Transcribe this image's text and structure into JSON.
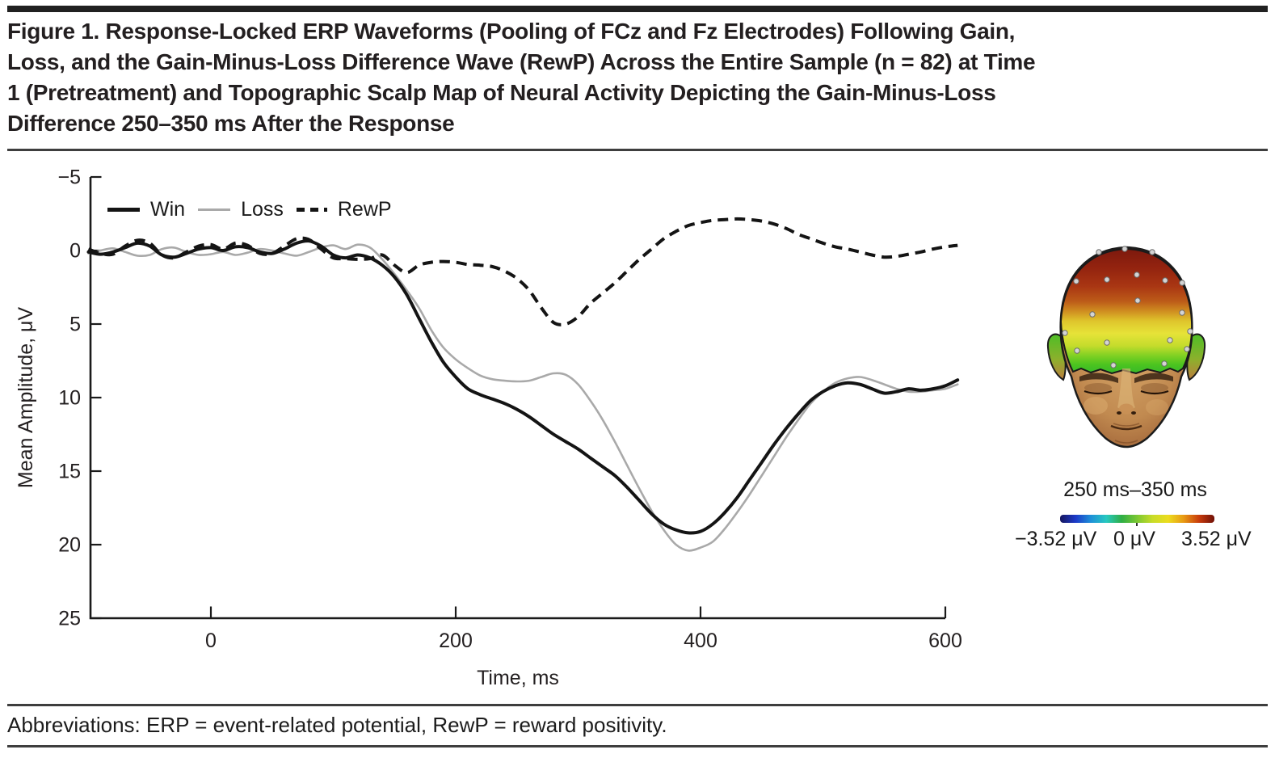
{
  "figure": {
    "caption_lines": [
      "Figure 1. Response-Locked ERP Waveforms (Pooling of FCz and Fz Electrodes) Following Gain,",
      "Loss, and the Gain-Minus-Loss Difference Wave (RewP) Across the Entire Sample (n = 82) at Time",
      "1 (Pretreatment) and Topographic Scalp Map of Neural Activity Depicting the Gain-Minus-Loss",
      "Difference 250–350 ms After the Response"
    ],
    "abbreviations": "Abbreviations: ERP = event-related potential, RewP = reward positivity."
  },
  "chart_data": {
    "type": "line",
    "title": "",
    "xlabel": "Time, ms",
    "ylabel": "Mean Amplitude, μV",
    "x_unit": "ms",
    "y_unit": "μV",
    "t_start": -100,
    "t_step": 10,
    "xlim": [
      -100,
      610
    ],
    "ylim": [
      25,
      -5
    ],
    "y_axis_inverted": true,
    "grid": false,
    "legend_position": "inside-top-left",
    "x_ticks": [
      0,
      200,
      400,
      600
    ],
    "x_tick_labels": [
      "0",
      "200",
      "400",
      "600"
    ],
    "y_ticks": [
      -5,
      0,
      5,
      10,
      15,
      20,
      25
    ],
    "y_tick_labels": [
      "−5",
      "0",
      "5",
      "10",
      "15",
      "20",
      "25"
    ],
    "series": [
      {
        "name": "Win",
        "style": "solid",
        "color": "#141414",
        "width": 4,
        "values": [
          0.1,
          0.25,
          0.1,
          -0.2,
          -0.5,
          -0.3,
          0.3,
          0.45,
          0.2,
          -0.1,
          -0.2,
          0,
          -0.25,
          -0.2,
          0.1,
          0.2,
          -0.1,
          -0.5,
          -0.65,
          -0.3,
          0.3,
          0.5,
          0.3,
          0.5,
          1,
          1.8,
          3,
          4.6,
          6.2,
          7.6,
          8.6,
          9.4,
          9.8,
          10.1,
          10.4,
          10.8,
          11.3,
          11.9,
          12.5,
          13,
          13.5,
          14.1,
          14.7,
          15.3,
          16.1,
          17,
          17.9,
          18.6,
          19,
          19.2,
          19.1,
          18.6,
          17.8,
          16.8,
          15.6,
          14.4,
          13.2,
          12.1,
          11.1,
          10.2,
          9.6,
          9.2,
          9,
          9.1,
          9.4,
          9.7,
          9.6,
          9.4,
          9.5,
          9.4,
          9.2,
          8.8
        ]
      },
      {
        "name": "Loss",
        "style": "solid",
        "color": "#a9a9a9",
        "width": 2.6,
        "values": [
          0.2,
          0,
          -0.15,
          0.1,
          0.35,
          0.3,
          -0.1,
          -0.2,
          0.1,
          0.3,
          0.25,
          0.1,
          0.3,
          0.15,
          -0.1,
          0,
          0.2,
          0.35,
          0.1,
          -0.2,
          -0.35,
          -0.1,
          -0.4,
          -0.2,
          0.6,
          1.6,
          2.7,
          3.9,
          5.4,
          6.6,
          7.4,
          8,
          8.5,
          8.75,
          8.85,
          8.9,
          8.85,
          8.6,
          8.35,
          8.45,
          9.1,
          10.2,
          11.5,
          13,
          14.6,
          16.2,
          17.7,
          19,
          20,
          20.4,
          20.2,
          19.8,
          18.9,
          17.8,
          16.6,
          15.3,
          14,
          12.7,
          11.5,
          10.4,
          9.6,
          9,
          8.7,
          8.6,
          8.8,
          9.1,
          9.4,
          9.6,
          9.6,
          9.5,
          9.4,
          9.1
        ]
      },
      {
        "name": "RewP",
        "style": "dashed",
        "color": "#141414",
        "width": 4,
        "values": [
          -0.1,
          0.2,
          0.25,
          -0.3,
          -0.7,
          -0.5,
          0.3,
          0.5,
          0.1,
          -0.3,
          -0.4,
          -0.1,
          -0.5,
          -0.35,
          0.2,
          0.2,
          -0.3,
          -0.8,
          -0.75,
          -0.1,
          0.5,
          0.55,
          0.6,
          0.55,
          0.3,
          1,
          1.5,
          1,
          0.8,
          0.75,
          0.8,
          0.95,
          1,
          1.1,
          1.4,
          1.9,
          2.7,
          3.9,
          4.9,
          5,
          4.5,
          3.6,
          2.9,
          2.2,
          1.4,
          0.6,
          -0.1,
          -0.8,
          -1.3,
          -1.7,
          -1.9,
          -2.05,
          -2.1,
          -2.15,
          -2.1,
          -2,
          -1.8,
          -1.5,
          -1.1,
          -0.8,
          -0.5,
          -0.25,
          -0.1,
          0.1,
          0.3,
          0.45,
          0.4,
          0.25,
          0.1,
          -0.1,
          -0.25,
          -0.35
        ]
      }
    ]
  },
  "topo": {
    "time_window": "250 ms–350 ms",
    "electrode_count": 19,
    "scalp_colors": {
      "crown": "#8e2212",
      "mid": "#c67d1e",
      "band": "#e2e436",
      "edge": "#3dbb2c"
    },
    "colorbar": {
      "colormap": "jet",
      "min_label": "−3.52 μV",
      "mid_label": "0 μV",
      "max_label": "3.52 μV",
      "colors": [
        "#16165e",
        "#1c39c8",
        "#1e90d8",
        "#27c8c0",
        "#2fae44",
        "#7cc832",
        "#c8dc28",
        "#ecdc1e",
        "#e89a14",
        "#c83c0c",
        "#701008"
      ]
    }
  },
  "colors": {
    "top_bar": "#212121",
    "rule": "#3e3e3e",
    "text": "#231f20"
  }
}
